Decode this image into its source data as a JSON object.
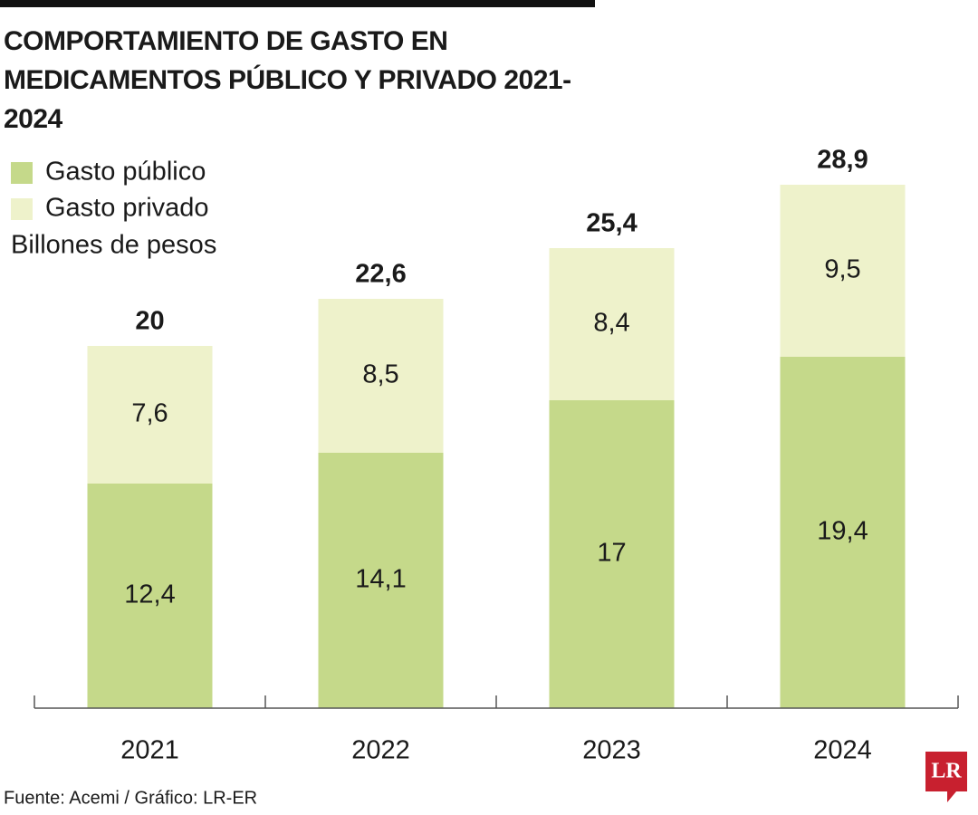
{
  "chart_data": {
    "type": "stacked_bar",
    "title": "COMPORTAMIENTO DE GASTO EN MEDICAMENTOS PÚBLICO Y PRIVADO 2021-2024",
    "subtitle": "Billones de pesos",
    "source": "Fuente: Acemi / Gráfico: LR-ER",
    "logo": "LR",
    "categories": [
      "2021",
      "2022",
      "2023",
      "2024"
    ],
    "series": [
      {
        "name": "Gasto público",
        "color": "#c5d98a",
        "values": [
          12.4,
          14.1,
          17,
          19.4
        ],
        "value_labels": [
          "12,4",
          "14,1",
          "17",
          "19,4"
        ]
      },
      {
        "name": "Gasto privado",
        "color": "#eef2cb",
        "values": [
          7.6,
          8.5,
          8.4,
          9.5
        ],
        "value_labels": [
          "7,6",
          "8,5",
          "8,4",
          "9,5"
        ]
      }
    ],
    "totals": [
      20,
      22.6,
      25.4,
      28.9
    ],
    "total_labels": [
      "20",
      "22,6",
      "25,4",
      "28,9"
    ]
  }
}
